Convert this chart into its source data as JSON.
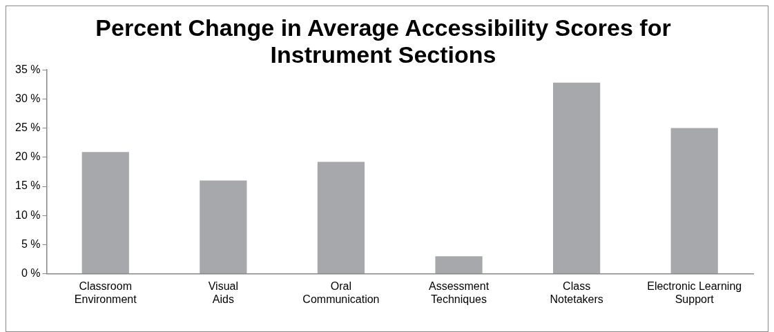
{
  "chart_data": {
    "type": "bar",
    "title": "Percent Change in Average Accessibility Scores for Instrument Sections",
    "categories": [
      "Classroom Environment",
      "Visual Aids",
      "Oral Communication",
      "Assessment Techniques",
      "Class Notetakers",
      "Electronic Learning Support"
    ],
    "values": [
      20.9,
      16.0,
      19.2,
      3.0,
      32.8,
      25.0
    ],
    "color": "#a7a8ab",
    "ylim": [
      0,
      35
    ],
    "yticks": [
      {
        "value": 0,
        "label": "0 %"
      },
      {
        "value": 5,
        "label": "5 %"
      },
      {
        "value": 10,
        "label": "10 %"
      },
      {
        "value": 15,
        "label": "15 %"
      },
      {
        "value": 20,
        "label": "20 %"
      },
      {
        "value": 25,
        "label": "25 %"
      },
      {
        "value": 30,
        "label": "30 %"
      },
      {
        "value": 35,
        "label": "35 %"
      }
    ],
    "grid": false,
    "legend": false
  }
}
